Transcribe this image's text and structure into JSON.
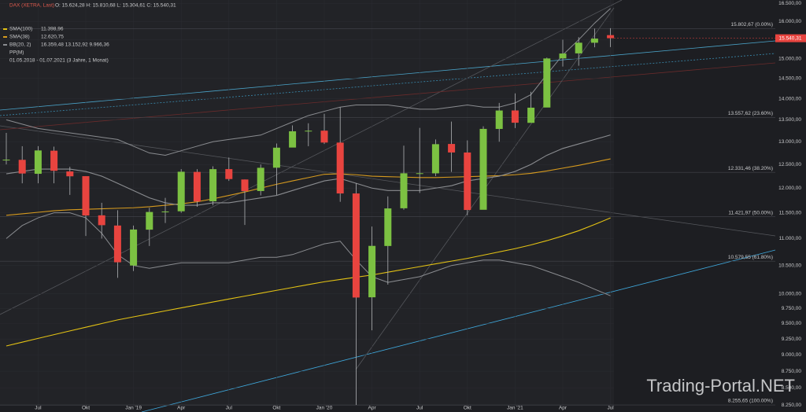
{
  "chart_data": {
    "type": "candlestick",
    "title": "DAX (XETRA, Last)",
    "ohlc_label": "O: 15.624,28  H: 15.810,68  L: 15.304,61  C: 15.540,31",
    "period": "01.05.2018 - 01.07.2021   (3 Jahre, 1 Monat)",
    "pivot": "PP(M)",
    "watermark": "Trading-Portal.NET",
    "last_price": {
      "value": 15540.31,
      "label": "15.540,31"
    },
    "log_scale": true,
    "up_color": "#7cc142",
    "down_color": "#e8443f",
    "categories": [
      null,
      null,
      "Jul",
      null,
      null,
      "Okt",
      null,
      null,
      "Jan '19",
      null,
      null,
      "Apr",
      null,
      null,
      "Jul",
      null,
      null,
      "Okt",
      null,
      null,
      "Jan '20",
      null,
      null,
      "Apr",
      null,
      null,
      "Jul",
      null,
      null,
      "Okt",
      null,
      null,
      "Jan '21",
      null,
      null,
      "Apr",
      null,
      null,
      "Jul"
    ],
    "open": [
      12600,
      12600,
      12300,
      12800,
      12350,
      12250,
      11450,
      11250,
      10500,
      11170,
      11520,
      11530,
      12340,
      11730,
      12400,
      12180,
      11940,
      12430,
      12870,
      13240,
      13250,
      12980,
      11890,
      9940,
      10860,
      11590,
      12310,
      12310,
      12950,
      12760,
      11560,
      13290,
      13720,
      13430,
      13790,
      15010,
      15140,
      15420,
      15624.28
    ],
    "high": [
      13200,
      12900,
      12900,
      12890,
      12450,
      12250,
      11700,
      11550,
      11250,
      11600,
      11800,
      12400,
      12400,
      12460,
      12650,
      12180,
      12500,
      12960,
      13370,
      13420,
      13640,
      13795,
      12100,
      11230,
      11830,
      12913,
      13314,
      13050,
      13460,
      13030,
      13350,
      13900,
      14130,
      14170,
      15030,
      15500,
      15570,
      15800,
      15810.68
    ],
    "low": [
      12500,
      12100,
      12100,
      12100,
      11860,
      11050,
      11000,
      10280,
      10400,
      10860,
      11300,
      11500,
      11620,
      11650,
      12150,
      11260,
      11850,
      11860,
      12880,
      12900,
      12950,
      11720,
      8256,
      9390,
      10160,
      11560,
      11900,
      12250,
      12340,
      11450,
      11600,
      13000,
      13310,
      13450,
      13800,
      14800,
      14820,
      15300,
      15304.61
    ],
    "close": [
      12604,
      12306,
      12806,
      12364,
      12247,
      11447,
      11257,
      10559,
      11173,
      11516,
      11526,
      12344,
      11727,
      12399,
      12189,
      11939,
      12428,
      12867,
      13236,
      13249,
      12981,
      11890,
      9936,
      10862,
      11587,
      12311,
      12313,
      12945,
      12761,
      11556,
      13291,
      13719,
      13433,
      13786,
      15008,
      15136,
      15421,
      15531,
      15540.31
    ],
    "series": [
      {
        "name": "SMA(100)",
        "value_label": "11.398,96",
        "color": "#e3c214",
        "values": [
          9140,
          9200,
          9260,
          9320,
          9380,
          9440,
          9500,
          9560,
          9610,
          9660,
          9710,
          9760,
          9810,
          9860,
          9910,
          9960,
          10010,
          10060,
          10110,
          10160,
          10210,
          10250,
          10290,
          10330,
          10380,
          10430,
          10480,
          10530,
          10580,
          10630,
          10690,
          10750,
          10810,
          10880,
          10960,
          11050,
          11150,
          11270,
          11398.96
        ]
      },
      {
        "name": "SMA(38)",
        "value_label": "12.620,75",
        "color": "#d69a1e",
        "values": [
          11450,
          11480,
          11510,
          11540,
          11560,
          11570,
          11580,
          11590,
          11600,
          11620,
          11650,
          11680,
          11720,
          11780,
          11850,
          11920,
          12000,
          12080,
          12150,
          12220,
          12290,
          12300,
          12280,
          12250,
          12240,
          12230,
          12220,
          12220,
          12230,
          12240,
          12250,
          12260,
          12280,
          12310,
          12360,
          12420,
          12480,
          12550,
          12620.75
        ]
      },
      {
        "name": "BB(20, 2)",
        "value_label": "16.359,48  13.152,92  9.966,36",
        "color": "#8a8c90",
        "upper": [
          13500,
          13400,
          13300,
          13250,
          13200,
          13150,
          13100,
          13050,
          12900,
          12750,
          12700,
          12800,
          12900,
          13000,
          13050,
          13100,
          13150,
          13300,
          13450,
          13600,
          13700,
          13800,
          13850,
          13850,
          13850,
          13800,
          13750,
          13750,
          13800,
          13850,
          13800,
          13800,
          13900,
          14100,
          14600,
          15100,
          15500,
          15950,
          16359.48
        ],
        "values": [
          12300,
          12350,
          12400,
          12400,
          12400,
          12350,
          12250,
          12100,
          11950,
          11800,
          11700,
          11650,
          11650,
          11700,
          11700,
          11750,
          11800,
          11850,
          11950,
          12050,
          12150,
          12200,
          12100,
          12000,
          11950,
          11950,
          11950,
          12000,
          12050,
          12150,
          12200,
          12250,
          12350,
          12500,
          12700,
          12850,
          12950,
          13050,
          13152.92
        ],
        "lower": [
          11000,
          11250,
          11400,
          11500,
          11500,
          11400,
          11100,
          10700,
          10500,
          10450,
          10500,
          10550,
          10550,
          10550,
          10550,
          10600,
          10650,
          10650,
          10700,
          10800,
          10900,
          10950,
          10600,
          10300,
          10200,
          10250,
          10300,
          10400,
          10500,
          10550,
          10600,
          10600,
          10550,
          10500,
          10400,
          10300,
          10200,
          10080,
          9966.36
        ]
      }
    ],
    "fib_levels": [
      {
        "value": 15802.67,
        "label": "15.802,67 (0.00%)"
      },
      {
        "value": 13557.62,
        "label": "13.557,62 (23.60%)"
      },
      {
        "value": 12331.46,
        "label": "12.331,46 (38.20%)"
      },
      {
        "value": 11421.97,
        "label": "11.421,97 (50.00%)"
      },
      {
        "value": 10579.55,
        "label": "10.579,55 (61.80%)"
      },
      {
        "value": 8255.65,
        "label": "8.255,65 (100.00%)"
      }
    ],
    "ylim": [
      8200,
      16600
    ],
    "yticks": [
      {
        "value": 16500,
        "label": "16.500,00"
      },
      {
        "value": 16000,
        "label": "16.000,00"
      },
      {
        "value": 15500,
        "label": "15.500,00"
      },
      {
        "value": 15000,
        "label": "15.000,00"
      },
      {
        "value": 14500,
        "label": "14.500,00"
      },
      {
        "value": 14000,
        "label": "14.000,00"
      },
      {
        "value": 13500,
        "label": "13.500,00"
      },
      {
        "value": 13000,
        "label": "13.000,00"
      },
      {
        "value": 12500,
        "label": "12.500,00"
      },
      {
        "value": 12000,
        "label": "12.000,00"
      },
      {
        "value": 11500,
        "label": "11.500,00"
      },
      {
        "value": 11000,
        "label": "11.000,00"
      },
      {
        "value": 10500,
        "label": "10.500,00"
      },
      {
        "value": 10000,
        "label": "10.000,00"
      },
      {
        "value": 9750,
        "label": "9.750,00"
      },
      {
        "value": 9500,
        "label": "9.500,00"
      },
      {
        "value": 9250,
        "label": "9.250,00"
      },
      {
        "value": 9000,
        "label": "9.000,00"
      },
      {
        "value": 8750,
        "label": "8.750,00"
      },
      {
        "value": 8500,
        "label": "8.500,00"
      },
      {
        "value": 8250,
        "label": "8.250,00"
      }
    ],
    "grid": true
  }
}
